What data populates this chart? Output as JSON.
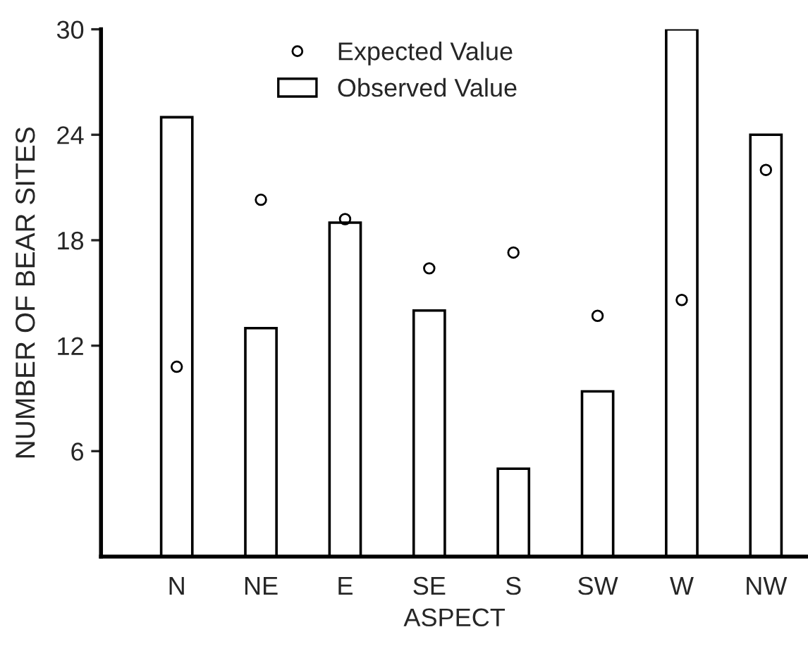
{
  "chart_data": {
    "type": "bar",
    "xlabel": "ASPECT",
    "ylabel": "NUMBER OF BEAR SITES",
    "categories": [
      "N",
      "NE",
      "E",
      "SE",
      "S",
      "SW",
      "W",
      "NW"
    ],
    "series": [
      {
        "name": "Expected Value",
        "type": "scatter",
        "color": "#000000",
        "values": [
          10.8,
          20.3,
          19.2,
          16.4,
          17.3,
          13.7,
          14.6,
          22.0
        ]
      },
      {
        "name": "Observed Value",
        "color": "#ffffff",
        "values": [
          25,
          13,
          19,
          14,
          5,
          9.4,
          30,
          24
        ]
      }
    ],
    "ylim": [
      0,
      30
    ],
    "yticks": [
      6,
      12,
      18,
      24,
      30
    ],
    "grid": false,
    "legend": "top",
    "marker": "circle"
  }
}
